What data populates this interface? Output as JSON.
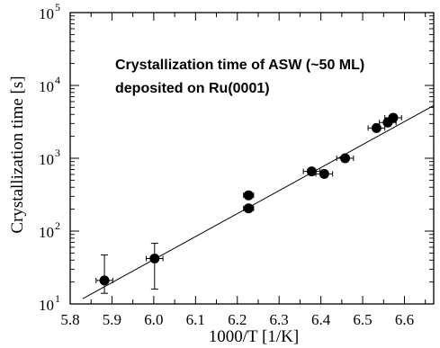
{
  "chart_data": {
    "type": "scatter",
    "title": [
      "Crystallization time of ASW (~50 ML)",
      "deposited on Ru(0001)"
    ],
    "xlabel": "1000/T [1/K]",
    "ylabel": "Crystallization time [s]",
    "xlim": [
      5.8,
      6.67
    ],
    "ylim": [
      10,
      100000
    ],
    "yscale": "log",
    "grid": false,
    "x_ticks": [
      "5.8",
      "5.9",
      "6.0",
      "6.1",
      "6.2",
      "6.3",
      "6.4",
      "6.5",
      "6.6"
    ],
    "y_ticks": [
      {
        "value": 10,
        "base": "10",
        "exp": "1"
      },
      {
        "value": 100,
        "base": "10",
        "exp": "2"
      },
      {
        "value": 1000,
        "base": "10",
        "exp": "3"
      },
      {
        "value": 10000,
        "base": "10",
        "exp": "4"
      },
      {
        "value": 100000,
        "base": "10",
        "exp": "5"
      }
    ],
    "points": [
      {
        "x": 5.882,
        "y": 21,
        "xerr": 0.02,
        "yerr_low": 14,
        "yerr_high": 47
      },
      {
        "x": 6.002,
        "y": 42,
        "xerr": 0.02,
        "yerr_low": 16,
        "yerr_high": 68
      },
      {
        "x": 6.227,
        "y": 310,
        "xerr": 0.012,
        "yerr_low": 290,
        "yerr_high": 330
      },
      {
        "x": 6.227,
        "y": 205,
        "xerr": 0.012,
        "yerr_low": 190,
        "yerr_high": 220
      },
      {
        "x": 6.378,
        "y": 660,
        "xerr": 0.02,
        "yerr_low": 630,
        "yerr_high": 690
      },
      {
        "x": 6.408,
        "y": 610,
        "xerr": 0.02,
        "yerr_low": 580,
        "yerr_high": 640
      },
      {
        "x": 6.458,
        "y": 1000,
        "xerr": 0.02,
        "yerr_low": 950,
        "yerr_high": 1050
      },
      {
        "x": 6.533,
        "y": 2600,
        "xerr": 0.02,
        "yerr_low": 2450,
        "yerr_high": 2750
      },
      {
        "x": 6.56,
        "y": 3100,
        "xerr": 0.02,
        "yerr_low": 2950,
        "yerr_high": 3250
      },
      {
        "x": 6.573,
        "y": 3600,
        "xerr": 0.02,
        "yerr_low": 3400,
        "yerr_high": 3800
      }
    ],
    "fit_line": {
      "x": [
        5.83,
        6.67
      ],
      "y": [
        11.8,
        5300
      ]
    }
  }
}
